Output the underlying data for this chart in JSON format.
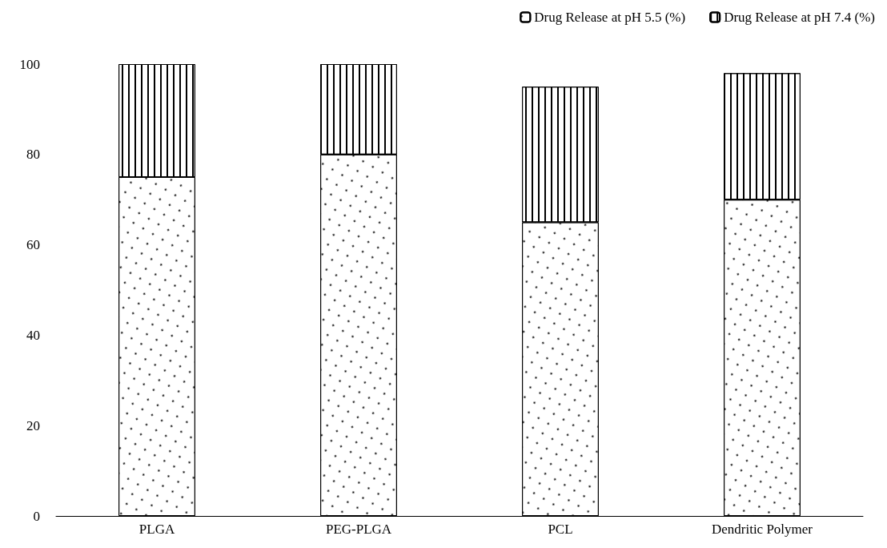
{
  "chart_data": {
    "type": "bar",
    "stacked": true,
    "categories": [
      "PLGA",
      "PEG-PLGA",
      "PCL",
      "Dendritic Polymer"
    ],
    "series": [
      {
        "name": "Drug Release at pH 5.5 (%)",
        "color": "#ffffff",
        "values": [
          75,
          80,
          65,
          70
        ]
      },
      {
        "name": "Drug Release at pH 7.4 (%)",
        "color": "#ffffff",
        "values": [
          25,
          20,
          30,
          28
        ]
      }
    ],
    "ylim": [
      0,
      100
    ],
    "yticks": [
      0,
      20,
      40,
      60,
      80,
      100
    ],
    "grid": false,
    "legend": "top right"
  }
}
